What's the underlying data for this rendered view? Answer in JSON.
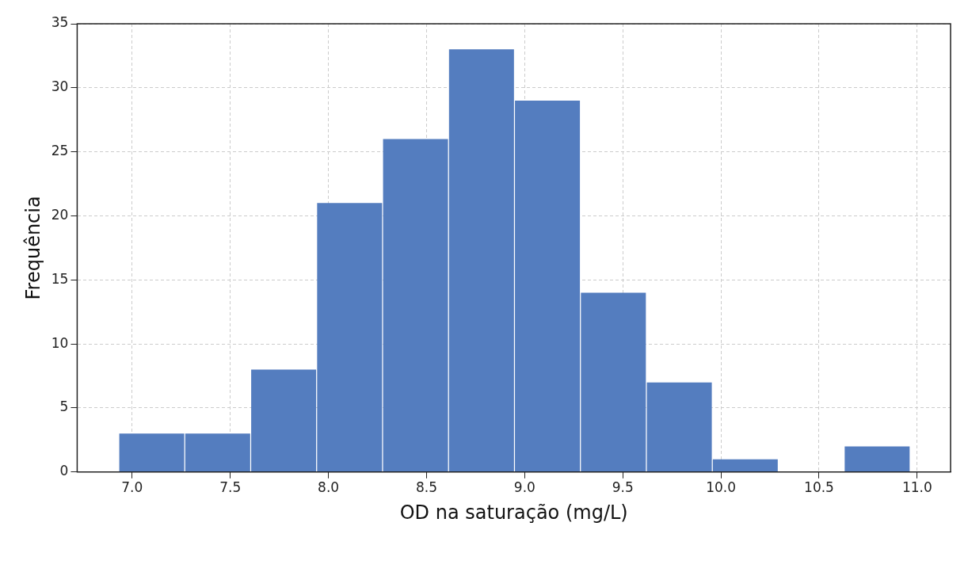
{
  "chart_data": {
    "type": "histogram",
    "xlabel": "OD na saturação (mg/L)",
    "ylabel": "Frequência",
    "bins": [
      6.932,
      7.268,
      7.604,
      7.94,
      8.276,
      8.612,
      8.948,
      9.284,
      9.62,
      9.956,
      10.292,
      10.628,
      10.964
    ],
    "values": [
      3,
      3,
      8,
      21,
      26,
      33,
      29,
      14,
      7,
      1,
      0,
      2
    ],
    "color": "#547dbf",
    "xlim": [
      6.72,
      11.17
    ],
    "xticks": [
      {
        "value": 7,
        "label": "7.0"
      },
      {
        "value": 7.5,
        "label": "7.5"
      },
      {
        "value": 8,
        "label": "8.0"
      },
      {
        "value": 8.5,
        "label": "8.5"
      },
      {
        "value": 9,
        "label": "9.0"
      },
      {
        "value": 9.5,
        "label": "9.5"
      },
      {
        "value": 10,
        "label": "10.0"
      },
      {
        "value": 10.5,
        "label": "10.5"
      },
      {
        "value": 11,
        "label": "11.0"
      }
    ],
    "ylim": [
      0,
      35
    ],
    "yticks": [
      0,
      5,
      10,
      15,
      20,
      25,
      30,
      35
    ],
    "grid": true,
    "legend": false
  }
}
